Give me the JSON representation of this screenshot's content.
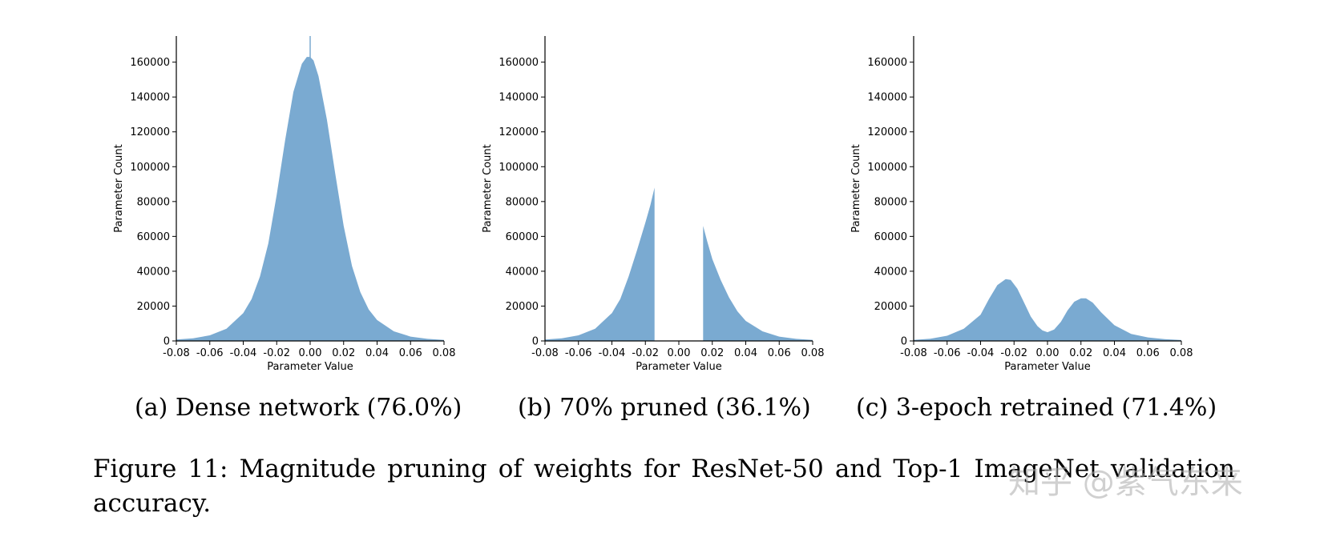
{
  "colors": {
    "bar": "#7aaad1",
    "axis": "#000000"
  },
  "chart_data": [
    {
      "type": "area",
      "subtitle": "(a) Dense network (76.0%)",
      "xlabel": "Parameter Value",
      "ylabel": "Parameter Count",
      "xlim": [
        -0.08,
        0.08
      ],
      "ylim": [
        0,
        175000
      ],
      "xticks": [
        -0.08,
        -0.06,
        -0.04,
        -0.02,
        0.0,
        0.02,
        0.04,
        0.06,
        0.08
      ],
      "xtick_labels": [
        "-0.08",
        "-0.06",
        "-0.04",
        "-0.02",
        "0.00",
        "0.02",
        "0.04",
        "0.06",
        "0.08"
      ],
      "yticks": [
        0,
        20000,
        40000,
        60000,
        80000,
        100000,
        120000,
        140000,
        160000
      ],
      "ytick_labels": [
        "0",
        "20000",
        "40000",
        "60000",
        "80000",
        "100000",
        "120000",
        "140000",
        "160000"
      ],
      "grid": false,
      "x": [
        -0.08,
        -0.07,
        -0.06,
        -0.05,
        -0.04,
        -0.035,
        -0.03,
        -0.025,
        -0.02,
        -0.015,
        -0.01,
        -0.005,
        -0.002,
        0.0,
        0.002,
        0.005,
        0.01,
        0.015,
        0.02,
        0.025,
        0.03,
        0.035,
        0.04,
        0.05,
        0.06,
        0.07,
        0.08
      ],
      "values": [
        800,
        1500,
        3200,
        7000,
        16000,
        24000,
        37000,
        56000,
        84000,
        115000,
        143000,
        159000,
        163000,
        163000,
        161000,
        152000,
        127000,
        96000,
        66000,
        43000,
        28000,
        18000,
        12000,
        5500,
        2500,
        1200,
        600
      ],
      "peak_spike": {
        "x": 0.0,
        "value": 175000
      }
    },
    {
      "type": "area",
      "subtitle": "(b) 70% pruned (36.1%)",
      "xlabel": "Parameter Value",
      "ylabel": "Parameter Count",
      "xlim": [
        -0.08,
        0.08
      ],
      "ylim": [
        0,
        175000
      ],
      "xticks": [
        -0.08,
        -0.06,
        -0.04,
        -0.02,
        0.0,
        0.02,
        0.04,
        0.06,
        0.08
      ],
      "xtick_labels": [
        "-0.08",
        "-0.06",
        "-0.04",
        "-0.02",
        "0.00",
        "0.02",
        "0.04",
        "0.06",
        "0.08"
      ],
      "yticks": [
        0,
        20000,
        40000,
        60000,
        80000,
        100000,
        120000,
        140000,
        160000
      ],
      "ytick_labels": [
        "0",
        "20000",
        "40000",
        "60000",
        "80000",
        "100000",
        "120000",
        "140000",
        "160000"
      ],
      "grid": false,
      "segments": [
        {
          "x": [
            -0.08,
            -0.07,
            -0.06,
            -0.05,
            -0.04,
            -0.035,
            -0.03,
            -0.025,
            -0.02,
            -0.017,
            -0.0145
          ],
          "values": [
            800,
            1500,
            3200,
            7000,
            16000,
            24000,
            37000,
            52000,
            68000,
            78000,
            88000
          ]
        },
        {
          "x": [
            0.0145,
            0.017,
            0.02,
            0.025,
            0.03,
            0.035,
            0.04,
            0.05,
            0.06,
            0.07,
            0.08
          ],
          "values": [
            66000,
            57000,
            47000,
            35000,
            25000,
            17000,
            11500,
            5500,
            2500,
            1200,
            600
          ]
        }
      ]
    },
    {
      "type": "area",
      "subtitle": "(c) 3-epoch retrained (71.4%)",
      "xlabel": "Parameter Value",
      "ylabel": "Parameter Count",
      "xlim": [
        -0.08,
        0.08
      ],
      "ylim": [
        0,
        175000
      ],
      "xticks": [
        -0.08,
        -0.06,
        -0.04,
        -0.02,
        0.0,
        0.02,
        0.04,
        0.06,
        0.08
      ],
      "xtick_labels": [
        "-0.08",
        "-0.06",
        "-0.04",
        "-0.02",
        "0.00",
        "0.02",
        "0.04",
        "0.06",
        "0.08"
      ],
      "yticks": [
        0,
        20000,
        40000,
        60000,
        80000,
        100000,
        120000,
        140000,
        160000
      ],
      "ytick_labels": [
        "0",
        "20000",
        "40000",
        "60000",
        "80000",
        "100000",
        "120000",
        "140000",
        "160000"
      ],
      "grid": false,
      "x": [
        -0.08,
        -0.07,
        -0.06,
        -0.05,
        -0.04,
        -0.035,
        -0.03,
        -0.025,
        -0.022,
        -0.018,
        -0.014,
        -0.01,
        -0.006,
        -0.003,
        0.0,
        0.004,
        0.008,
        0.012,
        0.016,
        0.02,
        0.023,
        0.027,
        0.032,
        0.04,
        0.05,
        0.06,
        0.07,
        0.08
      ],
      "values": [
        600,
        1300,
        3000,
        7000,
        15000,
        24000,
        32000,
        35500,
        35000,
        30000,
        22000,
        14000,
        8500,
        6000,
        5000,
        6500,
        11000,
        17500,
        22500,
        24500,
        24500,
        22000,
        16500,
        9000,
        4000,
        2000,
        1000,
        500
      ]
    }
  ],
  "captions": {
    "a": "(a) Dense network (76.0%)",
    "b": "(b) 70% pruned (36.1%)",
    "c": "(c) 3-epoch retrained (71.4%)",
    "figure": "Figure 11: Magnitude pruning of weights for ResNet-50 and Top-1 ImageNet validation accuracy."
  },
  "watermark": "知乎 @紫气东来"
}
